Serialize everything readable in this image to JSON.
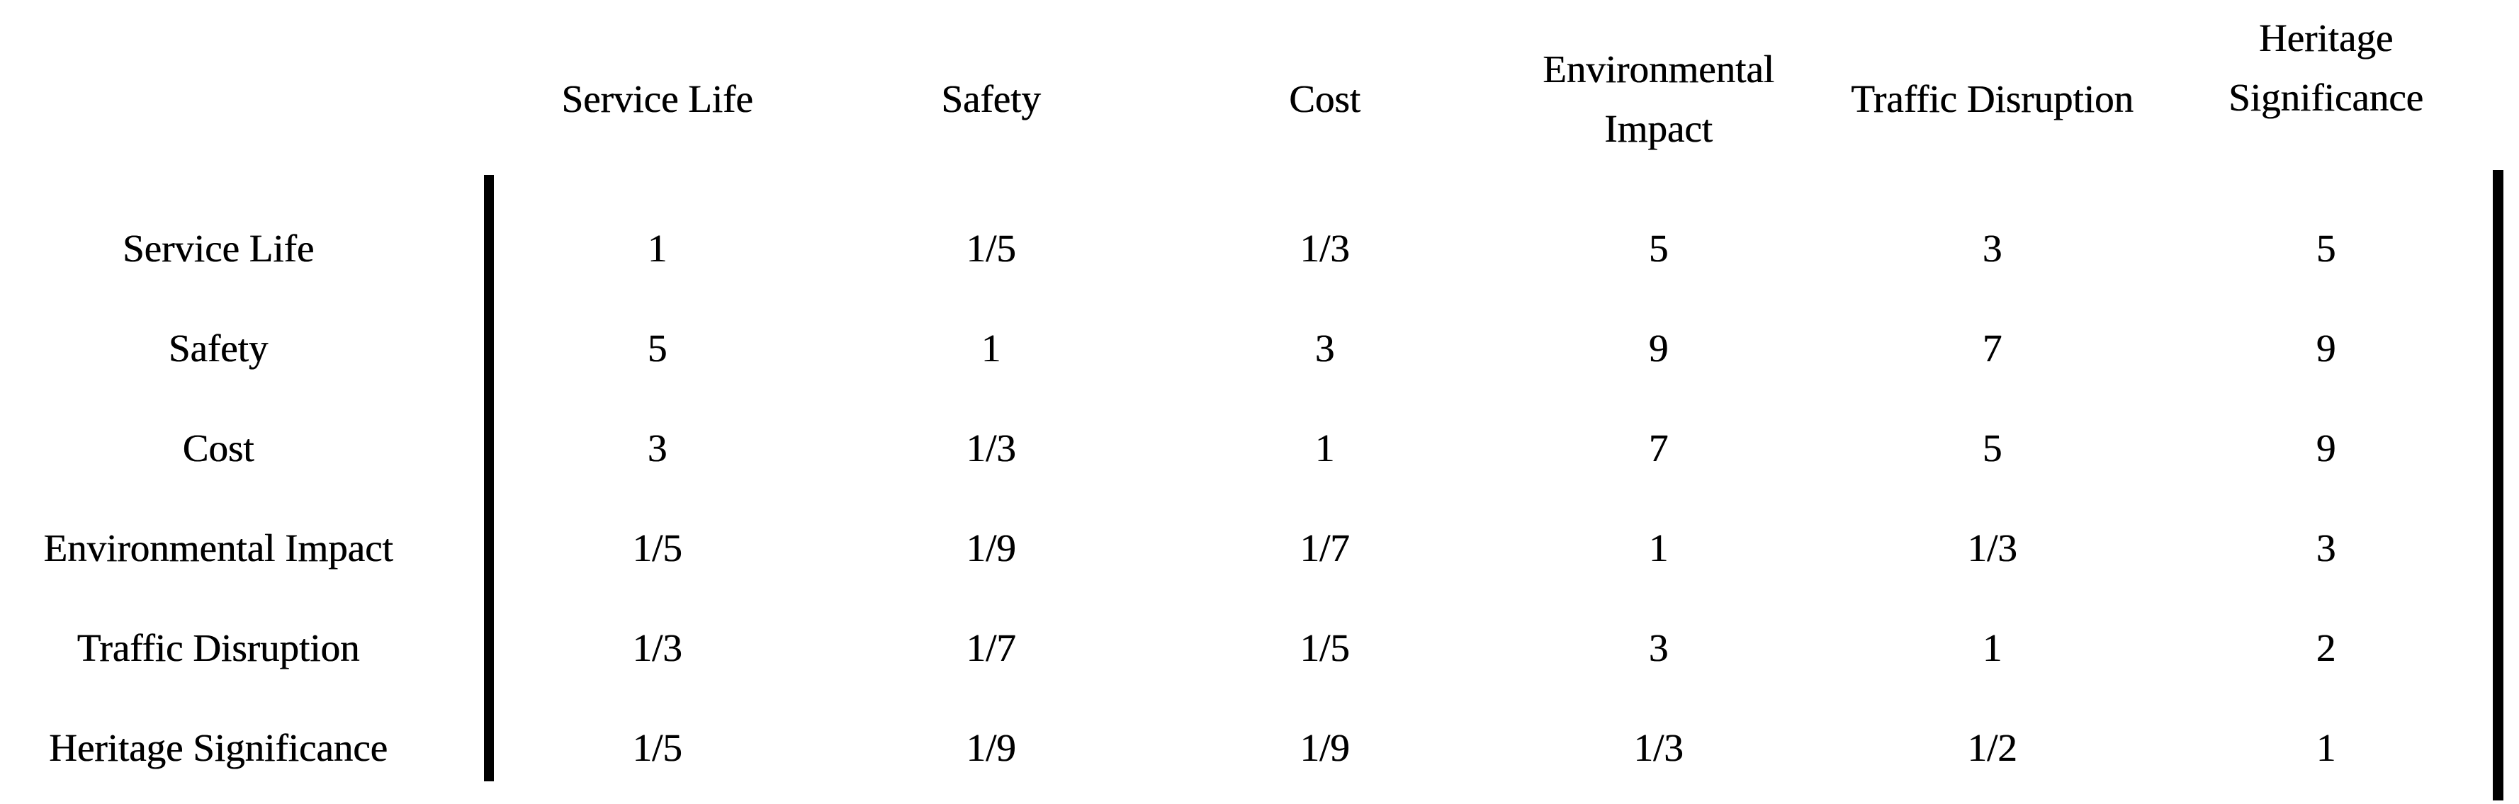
{
  "table": {
    "kind": "pairwise-comparison-matrix",
    "columns": [
      "Service Life",
      "Safety",
      "Cost",
      "Environmental Impact",
      "Traffic Disruption",
      "Heritage Significance"
    ],
    "rows": [
      {
        "label": "Service Life",
        "values": [
          "1",
          "1/5",
          "1/3",
          "5",
          "3",
          "5"
        ]
      },
      {
        "label": "Safety",
        "values": [
          "5",
          "1",
          "3",
          "9",
          "7",
          "9"
        ]
      },
      {
        "label": "Cost",
        "values": [
          "3",
          "1/3",
          "1",
          "7",
          "5",
          "9"
        ]
      },
      {
        "label": "Environmental Impact",
        "values": [
          "1/5",
          "1/9",
          "1/7",
          "1",
          "1/3",
          "3"
        ]
      },
      {
        "label": "Traffic Disruption",
        "values": [
          "1/3",
          "1/7",
          "1/5",
          "3",
          "1",
          "2"
        ]
      },
      {
        "label": "Heritage Significance",
        "values": [
          "1/5",
          "1/9",
          "1/9",
          "1/3",
          "1/2",
          "1"
        ]
      }
    ],
    "colors": {
      "text": "#000000",
      "background": "#ffffff",
      "rule": "#000000"
    }
  }
}
